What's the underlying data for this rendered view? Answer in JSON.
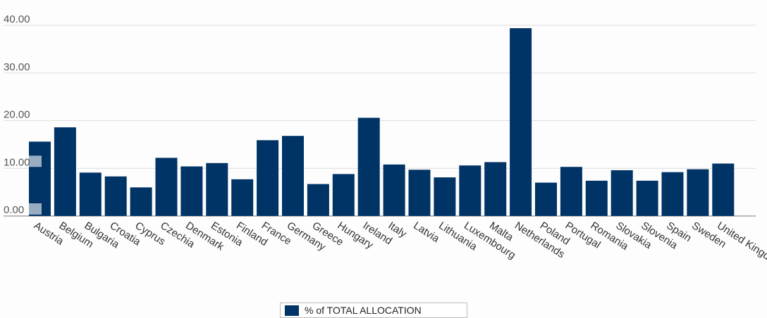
{
  "chart_data": {
    "type": "bar",
    "categories": [
      "Austria",
      "Belgium",
      "Bulgaria",
      "Croatia",
      "Cyprus",
      "Czechia",
      "Denmark",
      "Estonia",
      "Finland",
      "France",
      "Germany",
      "Greece",
      "Hungary",
      "Ireland",
      "Italy",
      "Latvia",
      "Lithuania",
      "Luxembourg",
      "Malta",
      "Netherlands",
      "Poland",
      "Portugal",
      "Romania",
      "Slovakia",
      "Slovenia",
      "Spain",
      "Sweden",
      "United Kingdom"
    ],
    "series": [
      {
        "name": "% of TOTAL ALLOCATION",
        "values": [
          15.6,
          18.6,
          9.1,
          8.3,
          6.0,
          12.2,
          10.4,
          11.1,
          7.7,
          15.9,
          16.8,
          6.7,
          8.8,
          20.6,
          10.8,
          9.7,
          8.1,
          10.6,
          11.3,
          39.4,
          7.0,
          10.3,
          7.4,
          9.6,
          7.4,
          9.2,
          9.8,
          11.0
        ]
      }
    ],
    "yticks": [
      "0.00",
      "10.00",
      "20.00",
      "30.00",
      "40.00"
    ],
    "ylim": [
      0,
      40
    ],
    "grid": true,
    "legend_position": "bottom-center",
    "colors": {
      "bar": "#003366",
      "grid": "#dddddd",
      "axis": "#bbbbbb"
    }
  }
}
